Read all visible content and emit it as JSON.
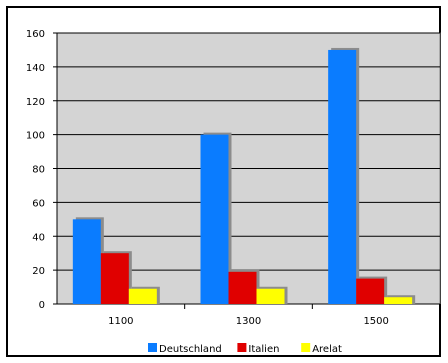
{
  "chart_data": {
    "type": "bar",
    "categories": [
      "1100",
      "1300",
      "1500"
    ],
    "series": [
      {
        "name": "Deutschland",
        "color": "#0a7cff",
        "values": [
          50,
          100,
          150
        ]
      },
      {
        "name": "Italien",
        "color": "#e00000",
        "values": [
          30,
          19,
          15
        ]
      },
      {
        "name": "Arelat",
        "color": "#ffff00",
        "values": [
          9,
          9,
          4
        ]
      }
    ],
    "ylim": [
      0,
      160
    ],
    "yticks": [
      "0",
      "20",
      "40",
      "60",
      "80",
      "100",
      "120",
      "140",
      "160"
    ],
    "grid": true,
    "legend": "bottom",
    "plot_background": "#d4d4d4"
  }
}
